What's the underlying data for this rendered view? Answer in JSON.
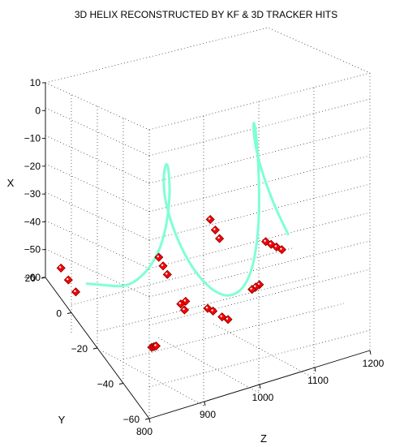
{
  "chart_data": {
    "type": "scatter",
    "title": "3D HELIX RECONSTRUCTED BY KF & 3D TRACKER HITS",
    "xlabel": "Z",
    "ylabel": "Y",
    "zlabel": "X",
    "x_ticks": [
      "800",
      "900",
      "1000",
      "1100",
      "1200"
    ],
    "y_ticks": [
      "20",
      "0",
      "−20",
      "−40",
      "−60"
    ],
    "z_ticks": [
      "10",
      "0",
      "−10",
      "−20",
      "−30",
      "−40",
      "−50",
      "−60"
    ],
    "xlim": [
      800,
      1200
    ],
    "ylim": [
      -60,
      20
    ],
    "zlim": [
      -60,
      10
    ],
    "grid": true,
    "colors": {
      "helix": "#7fffd4",
      "hits": "#ff0000"
    },
    "series": [
      {
        "name": "",
        "kind": "helix-curve",
        "points": [
          [
            838,
            5,
            -55
          ],
          [
            850,
            -5,
            -50
          ],
          [
            862,
            -15,
            -45
          ],
          [
            875,
            -22,
            -38
          ],
          [
            888,
            -28,
            -28
          ],
          [
            900,
            -30,
            -18
          ],
          [
            913,
            -28,
            -8
          ],
          [
            925,
            -22,
            -3
          ],
          [
            938,
            -15,
            -5
          ],
          [
            950,
            -8,
            -12
          ],
          [
            962,
            -2,
            -22
          ],
          [
            975,
            2,
            -32
          ],
          [
            988,
            2,
            -42
          ],
          [
            1000,
            -2,
            -50
          ],
          [
            1012,
            -8,
            -55
          ],
          [
            1025,
            -15,
            -57
          ],
          [
            1038,
            -22,
            -55
          ],
          [
            1050,
            -28,
            -48
          ],
          [
            1062,
            -30,
            -38
          ],
          [
            1075,
            -28,
            -25
          ],
          [
            1088,
            -22,
            -13
          ],
          [
            1100,
            -15,
            -5
          ],
          [
            1112,
            -8,
            -5
          ],
          [
            1125,
            -2,
            -12
          ],
          [
            1138,
            2,
            -22
          ],
          [
            1150,
            2,
            -32
          ],
          [
            1162,
            -2,
            -42
          ],
          [
            1175,
            -8,
            -50
          ]
        ]
      },
      {
        "name": "",
        "kind": "tracker-hits",
        "points": [
          [
            800,
            8,
            -49
          ],
          [
            804,
            4,
            -51
          ],
          [
            808,
            0,
            -53
          ],
          [
            875,
            -30,
            -58
          ],
          [
            879,
            -30,
            -58
          ],
          [
            883,
            -30,
            -58
          ],
          [
            935,
            -10,
            -42
          ],
          [
            938,
            -12,
            -44
          ],
          [
            941,
            -14,
            -46
          ],
          [
            960,
            -20,
            -53
          ],
          [
            956,
            -18,
            -55
          ],
          [
            958,
            -20,
            -56
          ],
          [
            1000,
            -20,
            -58
          ],
          [
            1005,
            -22,
            -58
          ],
          [
            1012,
            -26,
            -58
          ],
          [
            1018,
            -28,
            -58
          ],
          [
            1040,
            -5,
            -38
          ],
          [
            1042,
            -8,
            -40
          ],
          [
            1045,
            -10,
            -42
          ],
          [
            1075,
            -28,
            -49
          ],
          [
            1073,
            -26,
            -51
          ],
          [
            1071,
            -24,
            -53
          ],
          [
            1110,
            -18,
            -42
          ],
          [
            1115,
            -20,
            -42
          ],
          [
            1120,
            -22,
            -42
          ],
          [
            1125,
            -24,
            -42
          ]
        ]
      }
    ]
  }
}
